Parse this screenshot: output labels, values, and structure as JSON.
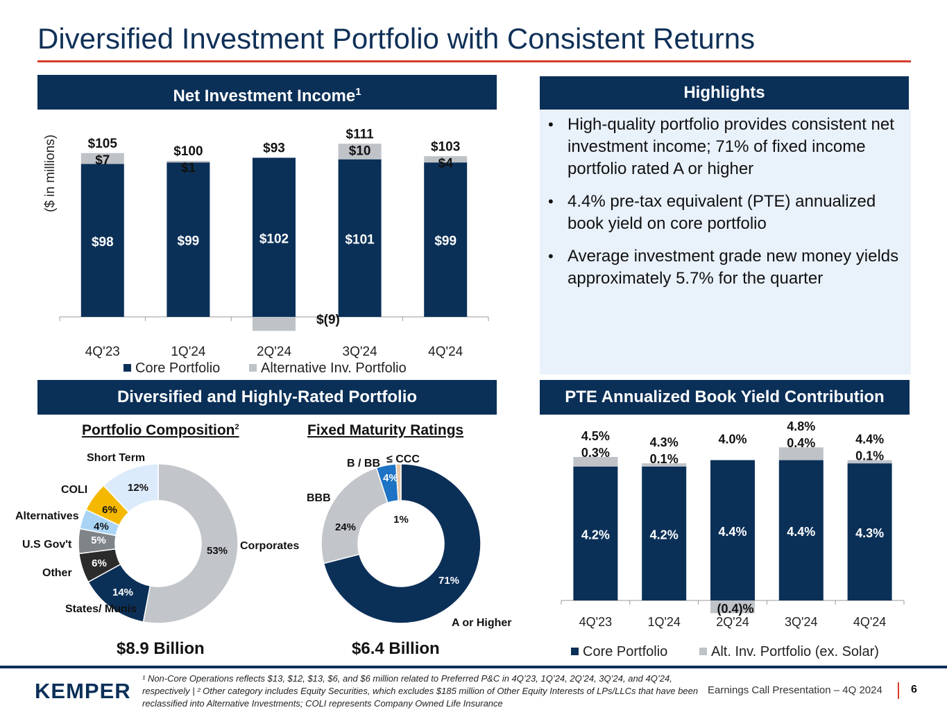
{
  "title": "Diversified Investment Portfolio with Consistent Returns",
  "nii": {
    "header": "Net Investment Income",
    "header_sup": "1",
    "ylabel": "($ in millions)"
  },
  "highlights": {
    "header": "Highlights",
    "bullets": [
      "High-quality portfolio provides consistent net investment income; 71% of fixed income portfolio rated A or higher",
      "4.4% pre-tax equivalent (PTE) annualized book yield on core portfolio",
      "Average investment grade new money yields approximately 5.7% for the quarter"
    ]
  },
  "diversified": {
    "header": "Diversified and Highly-Rated Portfolio",
    "composition_title": "Portfolio Composition",
    "composition_sup": "2",
    "composition_total": "$8.9 Billion",
    "ratings_title": "Fixed Maturity Ratings",
    "ratings_total": "$6.4 Billion"
  },
  "pte": {
    "header": "PTE Annualized Book Yield Contribution"
  },
  "chart_data": [
    {
      "id": "nii",
      "type": "bar",
      "stacked": true,
      "categories": [
        "4Q'23",
        "1Q'24",
        "2Q'24",
        "3Q'24",
        "4Q'24"
      ],
      "series": [
        {
          "name": "Core Portfolio",
          "values": [
            98,
            99,
            102,
            101,
            99
          ],
          "labels": [
            "$98",
            "$99",
            "$102",
            "$101",
            "$99"
          ],
          "color": "#0b3058"
        },
        {
          "name": "Alternative Inv. Portfolio",
          "values": [
            7,
            1,
            -9,
            10,
            4
          ],
          "labels": [
            "$7",
            "$1",
            "$(9)",
            "$10",
            "$4"
          ],
          "color": "#bfc3c8"
        }
      ],
      "totals": [
        "$105",
        "$100",
        "$93",
        "$111",
        "$103"
      ],
      "ylim": [
        -10,
        115
      ],
      "legend": "bottom"
    },
    {
      "id": "pte",
      "type": "bar",
      "stacked": true,
      "categories": [
        "4Q'23",
        "1Q'24",
        "2Q'24",
        "3Q'24",
        "4Q'24"
      ],
      "series": [
        {
          "name": "Core Portfolio",
          "values": [
            4.2,
            4.2,
            4.4,
            4.4,
            4.3
          ],
          "labels": [
            "4.2%",
            "4.2%",
            "4.4%",
            "4.4%",
            "4.3%"
          ],
          "color": "#0b3058"
        },
        {
          "name": "Alt. Inv. Portfolio (ex. Solar)",
          "values": [
            0.3,
            0.1,
            -0.4,
            0.4,
            0.1
          ],
          "labels": [
            "0.3%",
            "0.1%",
            "(0.4)%",
            "0.4%",
            "0.1%"
          ],
          "color": "#bfc3c8"
        }
      ],
      "totals": [
        "4.5%",
        "4.3%",
        "4.0%",
        "4.8%",
        "4.4%"
      ],
      "ylim": [
        -0.5,
        5.0
      ],
      "legend": "bottom"
    },
    {
      "id": "composition",
      "type": "pie",
      "donut": true,
      "slices": [
        {
          "name": "Corporates",
          "value": 53,
          "label": "53%",
          "color": "#c2c5c9"
        },
        {
          "name": "States/ Munis",
          "value": 14,
          "label": "14%",
          "color": "#0b3058"
        },
        {
          "name": "Other",
          "value": 6,
          "label": "6%",
          "color": "#2b2b2b"
        },
        {
          "name": "U.S Gov't",
          "value": 5,
          "label": "5%",
          "color": "#7f8489"
        },
        {
          "name": "Alternatives",
          "value": 4,
          "label": "4%",
          "color": "#a9d4f5"
        },
        {
          "name": "COLI",
          "value": 6,
          "label": "6%",
          "color": "#f5b800"
        },
        {
          "name": "Short Term",
          "value": 12,
          "label": "12%",
          "color": "#dcebfb"
        }
      ]
    },
    {
      "id": "ratings",
      "type": "pie",
      "donut": true,
      "slices": [
        {
          "name": "A or Higher",
          "value": 71,
          "label": "71%",
          "color": "#0b3058"
        },
        {
          "name": "BBB",
          "value": 24,
          "label": "24%",
          "color": "#c2c5c9"
        },
        {
          "name": "B / BB",
          "value": 4,
          "label": "4%",
          "color": "#1e73c4"
        },
        {
          "name": "≤ CCC",
          "value": 1,
          "label": "1%",
          "color": "#e8c9a8"
        }
      ]
    }
  ],
  "footer": {
    "logo": "KEMPER",
    "footnote": "¹ Non-Core Operations reflects $13, $12, $13, $6, and $6 million related to Preferred P&C in 4Q’23, 1Q’24, 2Q’24, 3Q’24, and 4Q’24, respectively | ² Other category includes Equity Securities, which excludes $185 million of Other Equity Interests of LPs/LLCs that have been reclassified into Alternative Investments; COLI represents Company Owned Life Insurance",
    "presentation": "Earnings Call Presentation – 4Q 2024",
    "page": "6"
  },
  "colors": {
    "navy": "#0b3058",
    "accent_red": "#d83b2b",
    "grey": "#bfc3c8",
    "highlight_bg": "#e9f1fb"
  }
}
